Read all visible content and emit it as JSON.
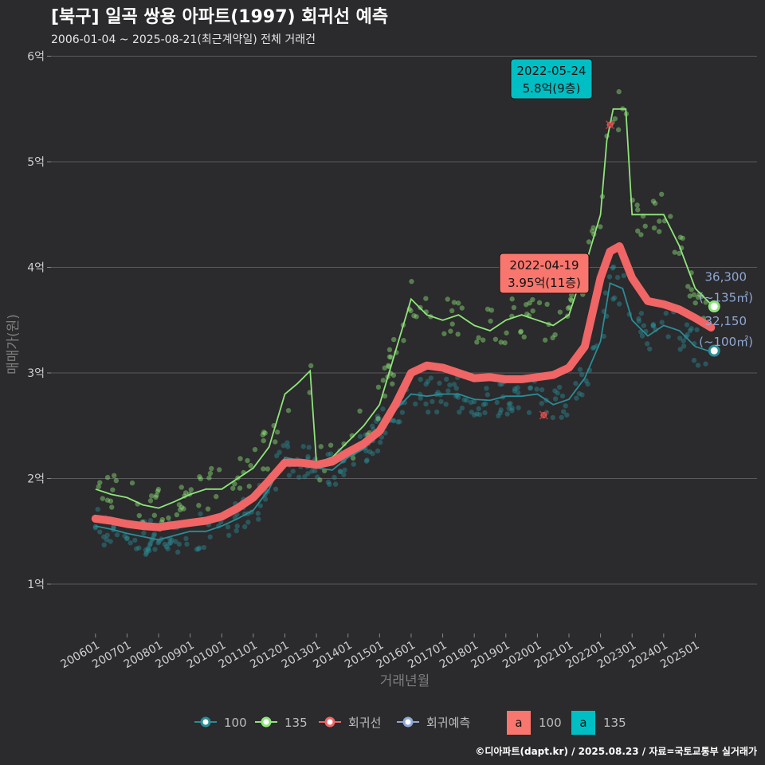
{
  "chart_data": {
    "type": "line",
    "title": "[북구] 일곡 쌍용 아파트(1997) 회귀선 예측",
    "subtitle": "2006-01-04 ~ 2025-08-21(최근계약일) 전체 거래건",
    "xlabel": "거래년월",
    "ylabel": "매매가(원)",
    "caption": "©디아파트(dapt.kr) / 2025.08.23 / 자료=국토교통부 실거래가",
    "x_range": [
      "2006-01",
      "2025-08"
    ],
    "ylim": [
      0.5,
      6.0
    ],
    "y_unit": "억",
    "y_ticks": [
      {
        "value": 1,
        "label": "1억"
      },
      {
        "value": 2,
        "label": "2억"
      },
      {
        "value": 3,
        "label": "3억"
      },
      {
        "value": 4,
        "label": "4억"
      },
      {
        "value": 5,
        "label": "5억"
      },
      {
        "value": 6,
        "label": "6억"
      }
    ],
    "x_ticks": [
      "200601",
      "200701",
      "200801",
      "200901",
      "201001",
      "201101",
      "201201",
      "201301",
      "201401",
      "201501",
      "201601",
      "201701",
      "201801",
      "201901",
      "202001",
      "202101",
      "202201",
      "202301",
      "202401",
      "202501"
    ],
    "grid": "horizontal",
    "legend_position": "bottom",
    "colors": {
      "s100": "#2a8c97",
      "s135": "#8ee57a",
      "reg": "#f06565",
      "pred": "#8ea8d4"
    },
    "series": [
      {
        "name": "100",
        "x": [
          2006.0,
          2006.5,
          2007.0,
          2007.5,
          2008.0,
          2008.5,
          2009.0,
          2009.5,
          2010.0,
          2010.5,
          2011.0,
          2011.5,
          2012.0,
          2012.5,
          2013.0,
          2013.5,
          2014.0,
          2014.5,
          2015.0,
          2015.5,
          2016.0,
          2016.5,
          2017.0,
          2017.5,
          2018.0,
          2018.5,
          2019.0,
          2019.5,
          2020.0,
          2020.5,
          2021.0,
          2021.5,
          2022.0,
          2022.3,
          2022.7,
          2023.0,
          2023.5,
          2024.0,
          2024.5,
          2025.0,
          2025.5
        ],
        "values": [
          1.55,
          1.52,
          1.48,
          1.45,
          1.42,
          1.46,
          1.5,
          1.5,
          1.55,
          1.62,
          1.7,
          1.9,
          2.2,
          2.17,
          2.1,
          2.08,
          2.2,
          2.28,
          2.45,
          2.65,
          2.8,
          2.78,
          2.8,
          2.8,
          2.75,
          2.74,
          2.78,
          2.78,
          2.8,
          2.7,
          2.75,
          2.95,
          3.3,
          3.85,
          3.8,
          3.5,
          3.35,
          3.45,
          3.4,
          3.25,
          3.2
        ]
      },
      {
        "name": "135",
        "x": [
          2006.0,
          2006.5,
          2007.0,
          2007.5,
          2008.0,
          2008.5,
          2009.0,
          2009.5,
          2010.0,
          2010.5,
          2011.0,
          2011.5,
          2012.0,
          2012.4,
          2012.8,
          2013.0,
          2013.5,
          2014.0,
          2014.5,
          2015.0,
          2015.5,
          2016.0,
          2016.5,
          2017.0,
          2017.5,
          2018.0,
          2018.5,
          2019.0,
          2019.5,
          2020.0,
          2020.5,
          2021.0,
          2021.5,
          2022.0,
          2022.2,
          2022.4,
          2022.6,
          2022.8,
          2023.0,
          2023.5,
          2024.0,
          2024.5,
          2025.0,
          2025.5
        ],
        "values": [
          1.9,
          1.85,
          1.82,
          1.75,
          1.72,
          1.78,
          1.85,
          1.9,
          1.9,
          2.0,
          2.1,
          2.3,
          2.8,
          2.9,
          3.02,
          2.15,
          2.2,
          2.35,
          2.5,
          2.7,
          3.2,
          3.7,
          3.55,
          3.5,
          3.55,
          3.45,
          3.4,
          3.5,
          3.55,
          3.5,
          3.45,
          3.55,
          4.0,
          4.5,
          5.2,
          5.5,
          5.5,
          5.5,
          4.5,
          4.5,
          4.5,
          4.2,
          3.8,
          3.65
        ]
      },
      {
        "name": "회귀선",
        "x": [
          2006.0,
          2006.5,
          2007.0,
          2007.5,
          2008.0,
          2008.5,
          2009.0,
          2009.5,
          2010.0,
          2010.5,
          2011.0,
          2011.5,
          2012.0,
          2012.5,
          2013.0,
          2013.5,
          2014.0,
          2014.5,
          2015.0,
          2015.5,
          2016.0,
          2016.5,
          2017.0,
          2017.5,
          2018.0,
          2018.5,
          2019.0,
          2019.5,
          2020.0,
          2020.5,
          2021.0,
          2021.5,
          2022.0,
          2022.3,
          2022.6,
          2023.0,
          2023.5,
          2024.0,
          2024.5,
          2025.0,
          2025.5
        ],
        "values": [
          1.62,
          1.6,
          1.57,
          1.55,
          1.54,
          1.56,
          1.58,
          1.6,
          1.64,
          1.72,
          1.82,
          1.98,
          2.15,
          2.15,
          2.13,
          2.16,
          2.25,
          2.33,
          2.45,
          2.7,
          3.0,
          3.07,
          3.05,
          3.0,
          2.95,
          2.96,
          2.94,
          2.94,
          2.96,
          2.98,
          3.05,
          3.25,
          3.9,
          4.15,
          4.2,
          3.9,
          3.68,
          3.65,
          3.6,
          3.52,
          3.43
        ]
      }
    ],
    "highlights": [
      {
        "date": "2022-05-24",
        "value": 5.8,
        "label": "5.8억(9층)",
        "series": "135"
      },
      {
        "date": "2022-04-19",
        "value": 3.95,
        "label": "3.95억(11층)",
        "series": "100"
      }
    ],
    "special_points": [
      {
        "x": 2022.3,
        "y": 5.35
      },
      {
        "x": 2020.2,
        "y": 2.6
      }
    ],
    "predictions": [
      {
        "series": "135",
        "x": 2025.6,
        "y": 3.63,
        "value_label": "36,300",
        "area_label": "(~135㎡)"
      },
      {
        "series": "100",
        "x": 2025.6,
        "y": 3.21,
        "value_label": "32,150",
        "area_label": "(~100㎡)"
      }
    ],
    "legend": {
      "line_items": [
        "100",
        "135",
        "회귀선",
        "회귀예측"
      ],
      "fill_items": [
        {
          "glyph": "a",
          "name": "100",
          "color": "#f8766d"
        },
        {
          "glyph": "a",
          "name": "135",
          "color": "#00bfc4"
        }
      ]
    }
  }
}
